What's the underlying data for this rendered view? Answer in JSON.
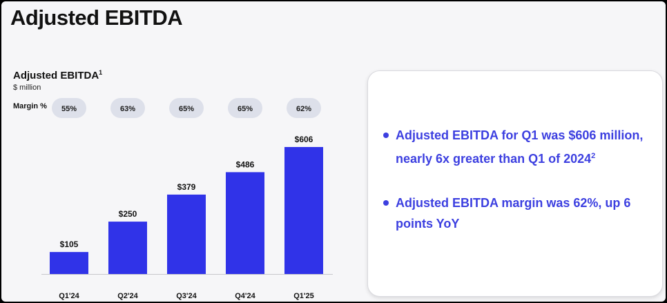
{
  "page": {
    "title": "Adjusted EBITDA"
  },
  "chart_data": {
    "type": "bar",
    "title": "Adjusted EBITDA",
    "title_footnote": "1",
    "unit": "$ million",
    "categories": [
      "Q1'24",
      "Q2'24",
      "Q3'24",
      "Q4'24",
      "Q1'25"
    ],
    "values": [
      105,
      250,
      379,
      486,
      606
    ],
    "value_labels": [
      "$105",
      "$250",
      "$379",
      "$486",
      "$606"
    ],
    "margin_row_label": "Margin %",
    "margins": [
      "55%",
      "63%",
      "65%",
      "65%",
      "62%"
    ],
    "bar_color": "#3033e8",
    "pill_color": "#dde0ea",
    "ylim": [
      0,
      606
    ],
    "grid": false
  },
  "highlights": {
    "bullet1_text": "Adjusted EBITDA for Q1 was $606 million, nearly 6x greater than Q1 of 2024",
    "bullet1_footnote": "2",
    "bullet2_text": "Adjusted EBITDA margin was 62%, up 6 points YoY",
    "accent_color": "#3c3fe0"
  }
}
